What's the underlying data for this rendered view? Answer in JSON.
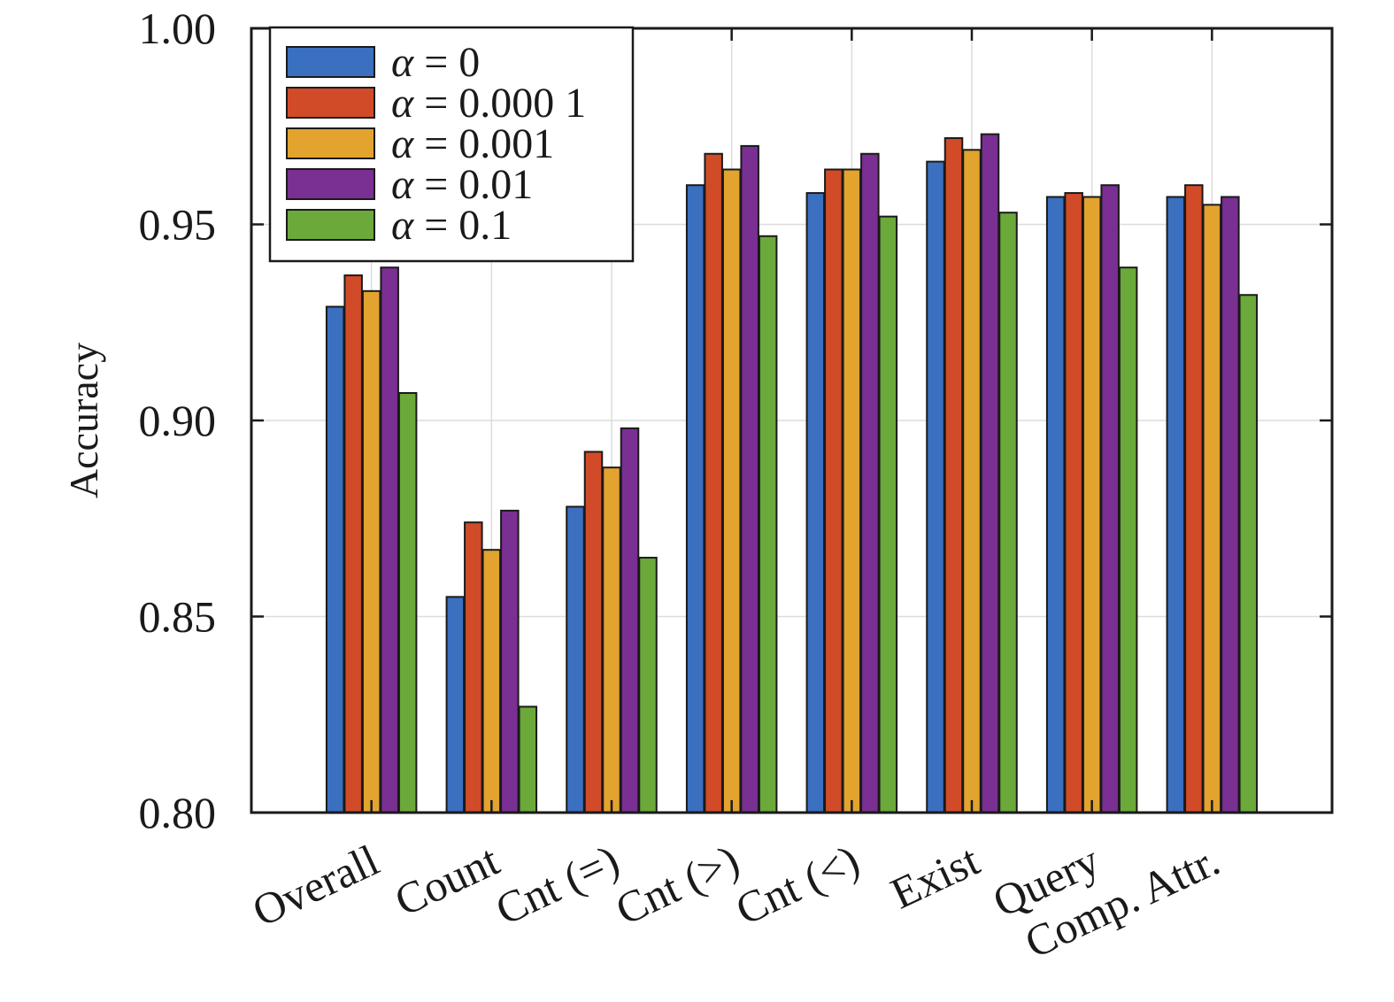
{
  "chart_data": {
    "type": "bar",
    "title": "",
    "xlabel": "",
    "ylabel": "Accuracy",
    "ylim": [
      0.8,
      1.0
    ],
    "yticks": [
      0.8,
      0.85,
      0.9,
      0.95,
      1.0
    ],
    "ytick_labels": [
      "0.80",
      "0.85",
      "0.90",
      "0.95",
      "1.00"
    ],
    "grid": true,
    "legend_position": "top-left",
    "categories": [
      "Overall",
      "Count",
      "Cnt (=)",
      "Cnt (>)",
      "Cnt (<)",
      "Exist",
      "Query",
      "Comp. Attr."
    ],
    "series": [
      {
        "name": "α = 0",
        "symbol": "α",
        "value_text": "= 0",
        "color": "#3b6fbf",
        "values": [
          0.929,
          0.855,
          0.878,
          0.96,
          0.958,
          0.966,
          0.957,
          0.957
        ]
      },
      {
        "name": "α = 0.000 1",
        "symbol": "α",
        "value_text": "= 0.000 1",
        "color": "#d14b28",
        "values": [
          0.937,
          0.874,
          0.892,
          0.968,
          0.964,
          0.972,
          0.958,
          0.96
        ]
      },
      {
        "name": "α = 0.001",
        "symbol": "α",
        "value_text": "= 0.001",
        "color": "#e3a32f",
        "values": [
          0.933,
          0.867,
          0.888,
          0.964,
          0.964,
          0.969,
          0.957,
          0.955
        ]
      },
      {
        "name": "α = 0.01",
        "symbol": "α",
        "value_text": "= 0.01",
        "color": "#7a2f93",
        "values": [
          0.939,
          0.877,
          0.898,
          0.97,
          0.968,
          0.973,
          0.96,
          0.957
        ]
      },
      {
        "name": "α = 0.1",
        "symbol": "α",
        "value_text": "= 0.1",
        "color": "#6aa93a",
        "values": [
          0.907,
          0.827,
          0.865,
          0.947,
          0.952,
          0.953,
          0.939,
          0.932
        ]
      }
    ]
  }
}
